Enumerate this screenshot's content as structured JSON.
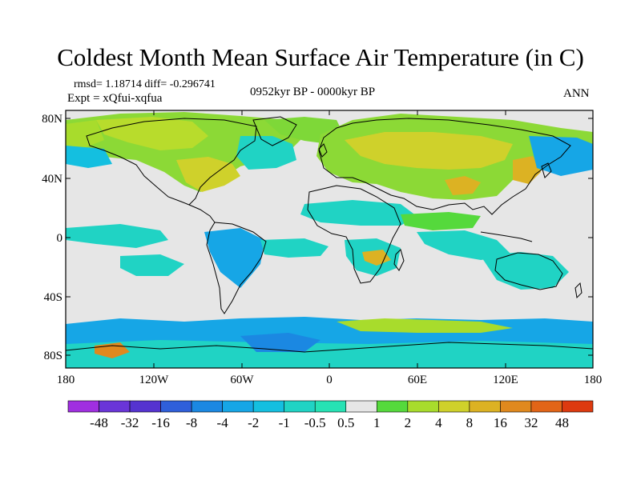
{
  "title": "Coldest Month Mean Surface Air Temperature (in C)",
  "stats": {
    "rmsd_label": "rmsd= 1.18714 diff= -0.296741"
  },
  "experiment": {
    "label": "Expt = xQfui-xqfua"
  },
  "period": {
    "label": "0952kyr BP - 0000kyr BP"
  },
  "season": {
    "label": "ANN"
  },
  "lat_axis": {
    "labels": [
      "80N",
      "40N",
      "0",
      "40S",
      "80S"
    ]
  },
  "lon_axis": {
    "labels": [
      "180",
      "120W",
      "60W",
      "0",
      "60E",
      "120E",
      "180"
    ]
  },
  "colorbar": {
    "labels": [
      "-48",
      "-32",
      "-16",
      "-8",
      "-4",
      "-2",
      "-1",
      "-0.5",
      "0.5",
      "1",
      "2",
      "4",
      "8",
      "16",
      "32",
      "48"
    ],
    "colors": [
      "#8c2ad6",
      "#5533d0",
      "#2f5fda",
      "#1b88e2",
      "#16a6e6",
      "#14bfe0",
      "#20d3c4",
      "#26e2b4",
      "#e6e6e6",
      "#55d93c",
      "#a8dc2c",
      "#cfd12b",
      "#dcb223",
      "#e0891e",
      "#e26517",
      "#dd3a0f"
    ]
  },
  "palette": {
    "land_outline": "#000000",
    "background_no_change": "#e6e6e6"
  }
}
